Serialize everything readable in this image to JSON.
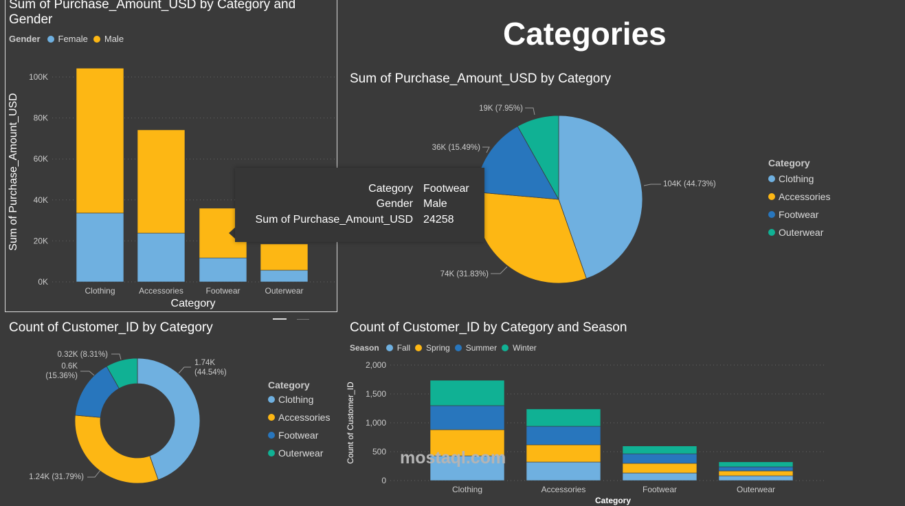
{
  "page_title": "Categories",
  "watermark": "mostaql.com",
  "colors": {
    "background": "#3a3a3a",
    "clothing": "#6fb0e0",
    "accessories": "#fdb714",
    "footwear": "#2876bd",
    "outerwear": "#10b194",
    "female": "#6fb0e0",
    "male": "#fdb714",
    "fall": "#6fb0e0",
    "spring": "#fdb714",
    "summer": "#2876bd",
    "winter": "#10b194"
  },
  "tooltip": {
    "rows": [
      {
        "label": "Category",
        "value": "Footwear"
      },
      {
        "label": "Gender",
        "value": "Male"
      },
      {
        "label": "Sum of Purchase_Amount_USD",
        "value": "24258"
      }
    ]
  },
  "chart_data": [
    {
      "type": "bar",
      "stacked": true,
      "title": "Sum of Purchase_Amount_USD by Category and Gender",
      "legend_title": "Gender",
      "legend_position": "top-left",
      "xlabel": "Category",
      "ylabel": "Sum of Purchase_Amount_USD",
      "categories": [
        "Clothing",
        "Accessories",
        "Footwear",
        "Outerwear"
      ],
      "series": [
        {
          "name": "Female",
          "values": [
            33600,
            23800,
            11700,
            5700
          ]
        },
        {
          "name": "Male",
          "values": [
            70700,
            50400,
            24258,
            12800
          ]
        }
      ],
      "yticks": [
        "0K",
        "20K",
        "40K",
        "60K",
        "80K",
        "100K"
      ],
      "ylim": [
        0,
        100000
      ],
      "grid": true
    },
    {
      "type": "pie",
      "title": "Sum of Purchase_Amount_USD by Category",
      "legend_title": "Category",
      "legend_position": "right",
      "categories": [
        "Clothing",
        "Accessories",
        "Footwear",
        "Outerwear"
      ],
      "values": [
        104000,
        74000,
        36000,
        19000
      ],
      "percents": [
        44.73,
        31.83,
        15.49,
        7.95
      ],
      "labels": [
        "104K (44.73%)",
        "74K (31.83%)",
        "36K (15.49%)",
        "19K (7.95%)"
      ]
    },
    {
      "type": "pie",
      "donut": true,
      "title": "Count of Customer_ID by Category",
      "legend_title": "Category",
      "legend_position": "right",
      "categories": [
        "Clothing",
        "Accessories",
        "Footwear",
        "Outerwear"
      ],
      "values": [
        1740,
        1240,
        600,
        320
      ],
      "percents": [
        44.54,
        31.79,
        15.36,
        8.31
      ],
      "labels": [
        [
          "1.74K",
          "(44.54%)"
        ],
        [
          "1.24K (31.79%)"
        ],
        [
          "0.6K",
          "(15.36%)"
        ],
        [
          "0.32K (8.31%)"
        ]
      ]
    },
    {
      "type": "bar",
      "stacked": true,
      "title": "Count of Customer_ID by Category and Season",
      "legend_title": "Season",
      "legend_position": "top-left",
      "xlabel": "Category",
      "ylabel": "Count of Customer_ID",
      "categories": [
        "Clothing",
        "Accessories",
        "Footwear",
        "Outerwear"
      ],
      "series": [
        {
          "name": "Fall",
          "values": [
            428,
            321,
            131,
            83
          ]
        },
        {
          "name": "Spring",
          "values": [
            453,
            298,
            167,
            84
          ]
        },
        {
          "name": "Summer",
          "values": [
            417,
            321,
            166,
            71
          ]
        },
        {
          "name": "Winter",
          "values": [
            439,
            300,
            135,
            86
          ]
        }
      ],
      "yticks": [
        "0",
        "500",
        "1,000",
        "1,500",
        "2,000"
      ],
      "ylim": [
        0,
        2000
      ],
      "grid": true
    }
  ]
}
